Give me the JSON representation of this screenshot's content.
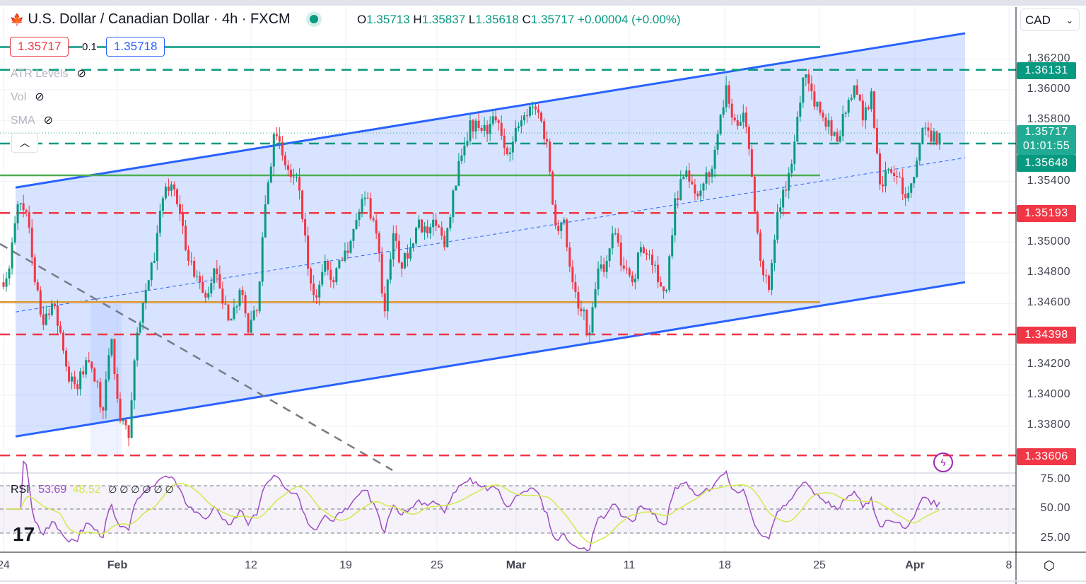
{
  "header": {
    "symbol_title": "U.S. Dollar / Canadian Dollar · 4h · FXCM",
    "open_label": "O",
    "open": "1.35713",
    "high_label": "H",
    "high": "1.35837",
    "low_label": "L",
    "low": "1.35618",
    "close_label": "C",
    "close": "1.35717",
    "change": "+0.00004 (+0.00%)"
  },
  "trade": {
    "sell": "1.35717",
    "spread": "0.1",
    "buy": "1.35718"
  },
  "indicators": [
    {
      "label": "ATR Levels"
    },
    {
      "label": "Vol"
    },
    {
      "label": "SMA"
    }
  ],
  "currency": "CAD",
  "rsi": {
    "label": "RSI",
    "value": "53.69",
    "ma_value": "48.52",
    "placeholders": "∅ ∅ ∅ ∅ ∅ ∅",
    "color": "#9c4dc4",
    "ma_color": "#d4e94a"
  },
  "price_tags": {
    "upper_atr": "1.36131",
    "current": "1.35717",
    "countdown": "01:01:55",
    "lower_atr": "1.35648",
    "r1": "1.35193",
    "r2": "1.34398",
    "r3": "1.33606"
  },
  "chart_data": {
    "type": "candlestick",
    "title": "U.S. Dollar / Canadian Dollar · 4h · FXCM",
    "ylim": [
      1.3355,
      1.365
    ],
    "y_ticks": [
      "1.36200",
      "1.36000",
      "1.35800",
      "1.35400",
      "1.35000",
      "1.34800",
      "1.34600",
      "1.34200",
      "1.34000",
      "1.33800"
    ],
    "x_ticks": [
      "24",
      "Feb",
      "12",
      "19",
      "25",
      "Mar",
      "11",
      "18",
      "25",
      "Apr",
      "8"
    ],
    "rsi_ticks": [
      "75.00",
      "50.00",
      "25.00"
    ],
    "closes": [
      1.3474,
      1.3483,
      1.3525,
      1.352,
      1.3474,
      1.3446,
      1.346,
      1.3441,
      1.3409,
      1.3404,
      1.3423,
      1.3409,
      1.339,
      1.3437,
      1.3383,
      1.3372,
      1.3441,
      1.3469,
      1.3488,
      1.3529,
      1.3538,
      1.352,
      1.3488,
      1.3478,
      1.3464,
      1.3483,
      1.346,
      1.345,
      1.3469,
      1.3441,
      1.3455,
      1.3525,
      1.3571,
      1.3557,
      1.3543,
      1.3534,
      1.3483,
      1.3464,
      1.3488,
      1.3474,
      1.3488,
      1.3501,
      1.352,
      1.3529,
      1.3506,
      1.3455,
      1.3506,
      1.3483,
      1.3497,
      1.3515,
      1.3506,
      1.3511,
      1.3497,
      1.3534,
      1.3557,
      1.358,
      1.3575,
      1.3571,
      1.358,
      1.3562,
      1.3566,
      1.358,
      1.3589,
      1.3585,
      1.3566,
      1.3511,
      1.3515,
      1.3474,
      1.3455,
      1.3441,
      1.3483,
      1.3488,
      1.3506,
      1.3483,
      1.3474,
      1.3497,
      1.3492,
      1.3474,
      1.3469,
      1.3529,
      1.3543,
      1.3538,
      1.3534,
      1.3543,
      1.3571,
      1.3603,
      1.358,
      1.3585,
      1.3543,
      1.3488,
      1.3469,
      1.352,
      1.3534,
      1.3566,
      1.3608,
      1.3599,
      1.3585,
      1.358,
      1.3566,
      1.3585,
      1.3603,
      1.358,
      1.3599,
      1.3538,
      1.3548,
      1.3543,
      1.3529,
      1.3543,
      1.3575,
      1.3566,
      1.35717
    ],
    "levels": [
      {
        "price": 1.36131,
        "style": "dashed",
        "color": "#089981"
      },
      {
        "price": 1.35648,
        "style": "dashed",
        "color": "#089981"
      },
      {
        "price": 1.35193,
        "style": "dashed",
        "color": "#f23645"
      },
      {
        "price": 1.34398,
        "style": "dashed",
        "color": "#f23645"
      },
      {
        "price": 1.33606,
        "style": "dashed",
        "color": "#f23645"
      },
      {
        "price": 1.3628,
        "style": "solid",
        "color": "#089981"
      },
      {
        "price": 1.3544,
        "style": "solid",
        "color": "#4caf50"
      },
      {
        "price": 1.3461,
        "style": "solid",
        "color": "#e0962e"
      }
    ],
    "channel": {
      "upper": [
        1.3536,
        1.3637
      ],
      "lower": [
        1.3373,
        1.3474
      ],
      "color": "#2962ff"
    },
    "up_color": "#089981",
    "down_color": "#f23645"
  }
}
